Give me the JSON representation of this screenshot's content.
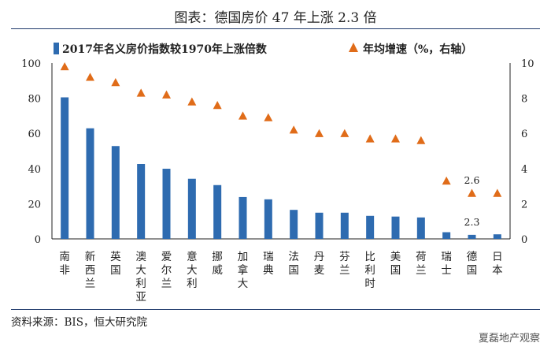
{
  "title": "图表：德国房价 47 年上涨 2.3 倍",
  "source": "资料来源：BIS，恒大研究院",
  "watermark": "夏磊地产观察",
  "chart_data": {
    "type": "bar",
    "categories": [
      "南非",
      "新西兰",
      "英国",
      "澳大利亚",
      "爱尔兰",
      "意大利",
      "挪威",
      "加拿大",
      "瑞典",
      "法国",
      "丹麦",
      "芬兰",
      "比利时",
      "美国",
      "荷兰",
      "瑞士",
      "德国",
      "日本"
    ],
    "series": [
      {
        "name": "2017年名义房价指数较1970年上涨倍数",
        "type": "bar",
        "axis": "left",
        "color": "#2e6bb0",
        "values": [
          80.5,
          62.9,
          52.8,
          42.6,
          39.9,
          34.2,
          30.6,
          23.8,
          22.5,
          16.5,
          14.9,
          14.9,
          13.1,
          12.7,
          12.2,
          3.8,
          2.3,
          2.6
        ]
      },
      {
        "name": "年均增速（%，右轴）",
        "type": "scatter",
        "marker": "triangle",
        "axis": "right",
        "color": "#e06c19",
        "values": [
          9.8,
          9.2,
          8.9,
          8.3,
          8.2,
          7.8,
          7.6,
          7.0,
          6.9,
          6.2,
          6.0,
          6.0,
          5.7,
          5.7,
          5.6,
          3.3,
          2.6,
          2.6
        ]
      }
    ],
    "data_labels": [
      {
        "series": 0,
        "category": "德国",
        "text": "2.3"
      },
      {
        "series": 1,
        "category": "德国",
        "text": "2.6"
      }
    ],
    "ylim": [
      0,
      100
    ],
    "yticks": [
      0,
      20,
      40,
      60,
      80,
      100
    ],
    "y2lim": [
      0,
      10
    ],
    "y2ticks": [
      0,
      2,
      4,
      6,
      8,
      10
    ],
    "legend_position": "top",
    "grid": false
  }
}
